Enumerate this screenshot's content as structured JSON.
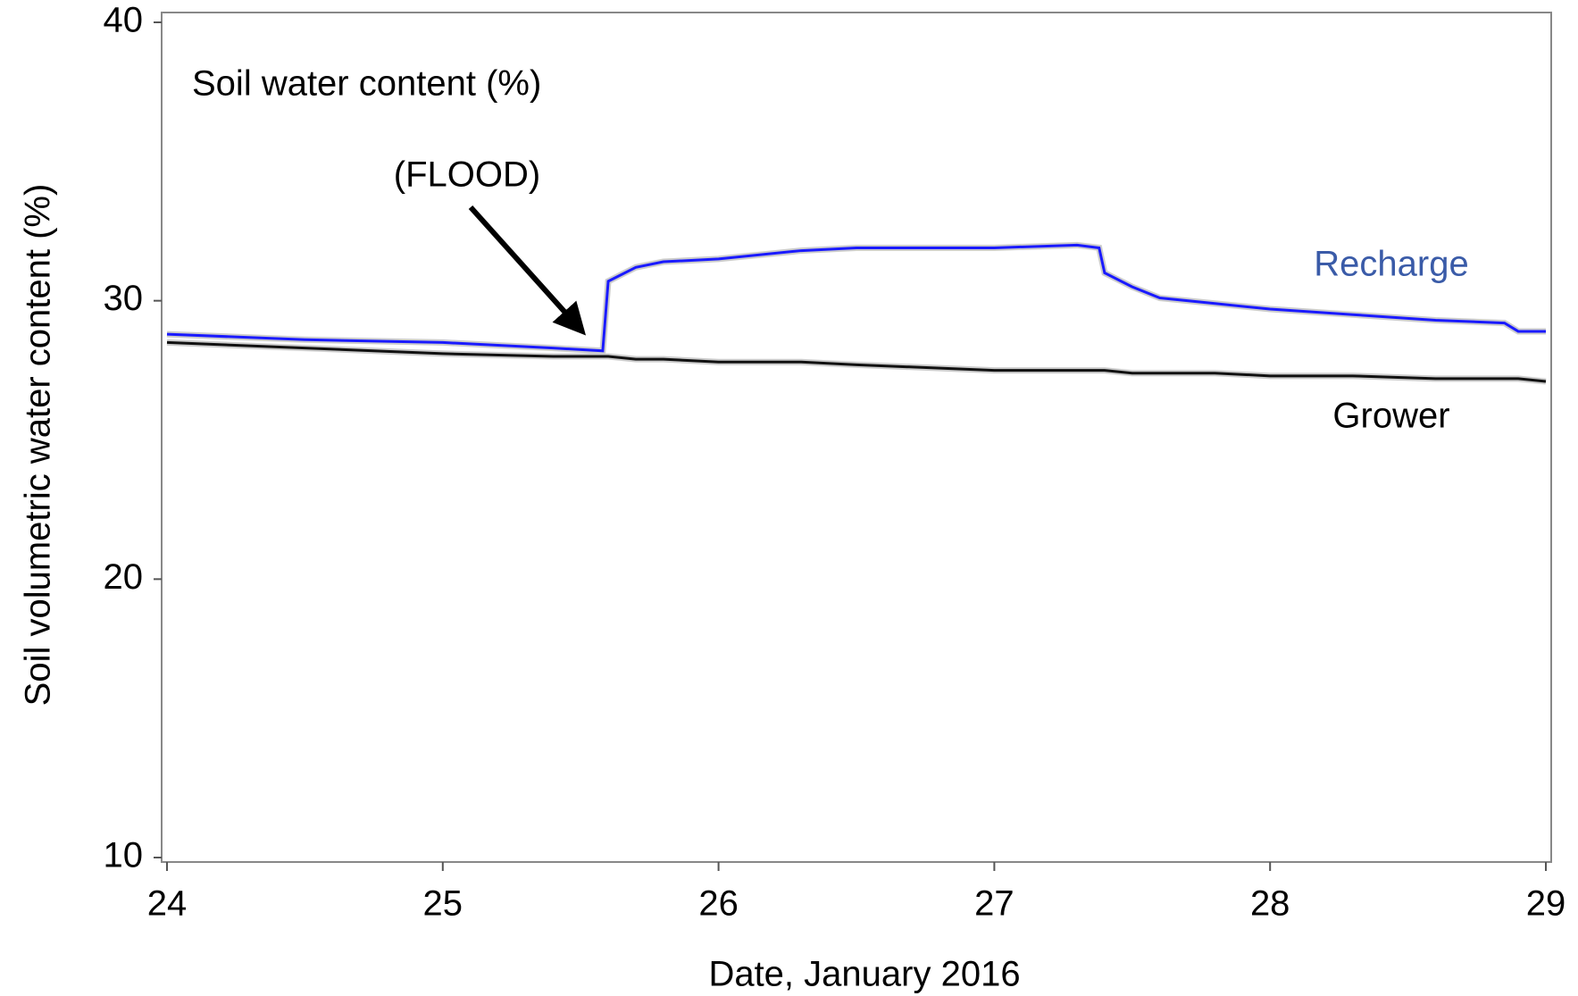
{
  "chart_data": {
    "type": "line",
    "xlabel": "Date, January 2016",
    "ylabel": "Soil volumetric water content (%)",
    "annotations": [
      {
        "text": "Soil water content (%)"
      },
      {
        "text": "(FLOOD)"
      }
    ],
    "x": [
      24,
      24.5,
      25,
      25.4,
      25.58,
      25.6,
      25.7,
      25.8,
      26,
      26.3,
      26.5,
      27,
      27.3,
      27.38,
      27.4,
      27.5,
      27.6,
      27.8,
      28,
      28.3,
      28.6,
      28.85,
      28.9,
      29
    ],
    "series": [
      {
        "name": "Recharge",
        "color": "#1a1aff",
        "label_color": "#3a5ba8",
        "values": [
          28.8,
          28.6,
          28.5,
          28.3,
          28.2,
          30.7,
          31.2,
          31.4,
          31.5,
          31.8,
          31.9,
          31.9,
          32.0,
          31.9,
          31.0,
          30.5,
          30.1,
          29.9,
          29.7,
          29.5,
          29.3,
          29.2,
          28.9,
          28.9
        ]
      },
      {
        "name": "Grower",
        "color": "#111111",
        "label_color": "#000000",
        "values": [
          28.5,
          28.3,
          28.1,
          28.0,
          28.0,
          28.0,
          27.9,
          27.9,
          27.8,
          27.8,
          27.7,
          27.5,
          27.5,
          27.5,
          27.5,
          27.4,
          27.4,
          27.4,
          27.3,
          27.3,
          27.2,
          27.2,
          27.2,
          27.1
        ]
      }
    ],
    "xlim": [
      24,
      29
    ],
    "xticks": [
      24,
      25,
      26,
      27,
      28,
      29
    ],
    "ylim": [
      10,
      40
    ],
    "yticks": [
      10,
      20,
      30,
      40
    ],
    "grid": false
  }
}
